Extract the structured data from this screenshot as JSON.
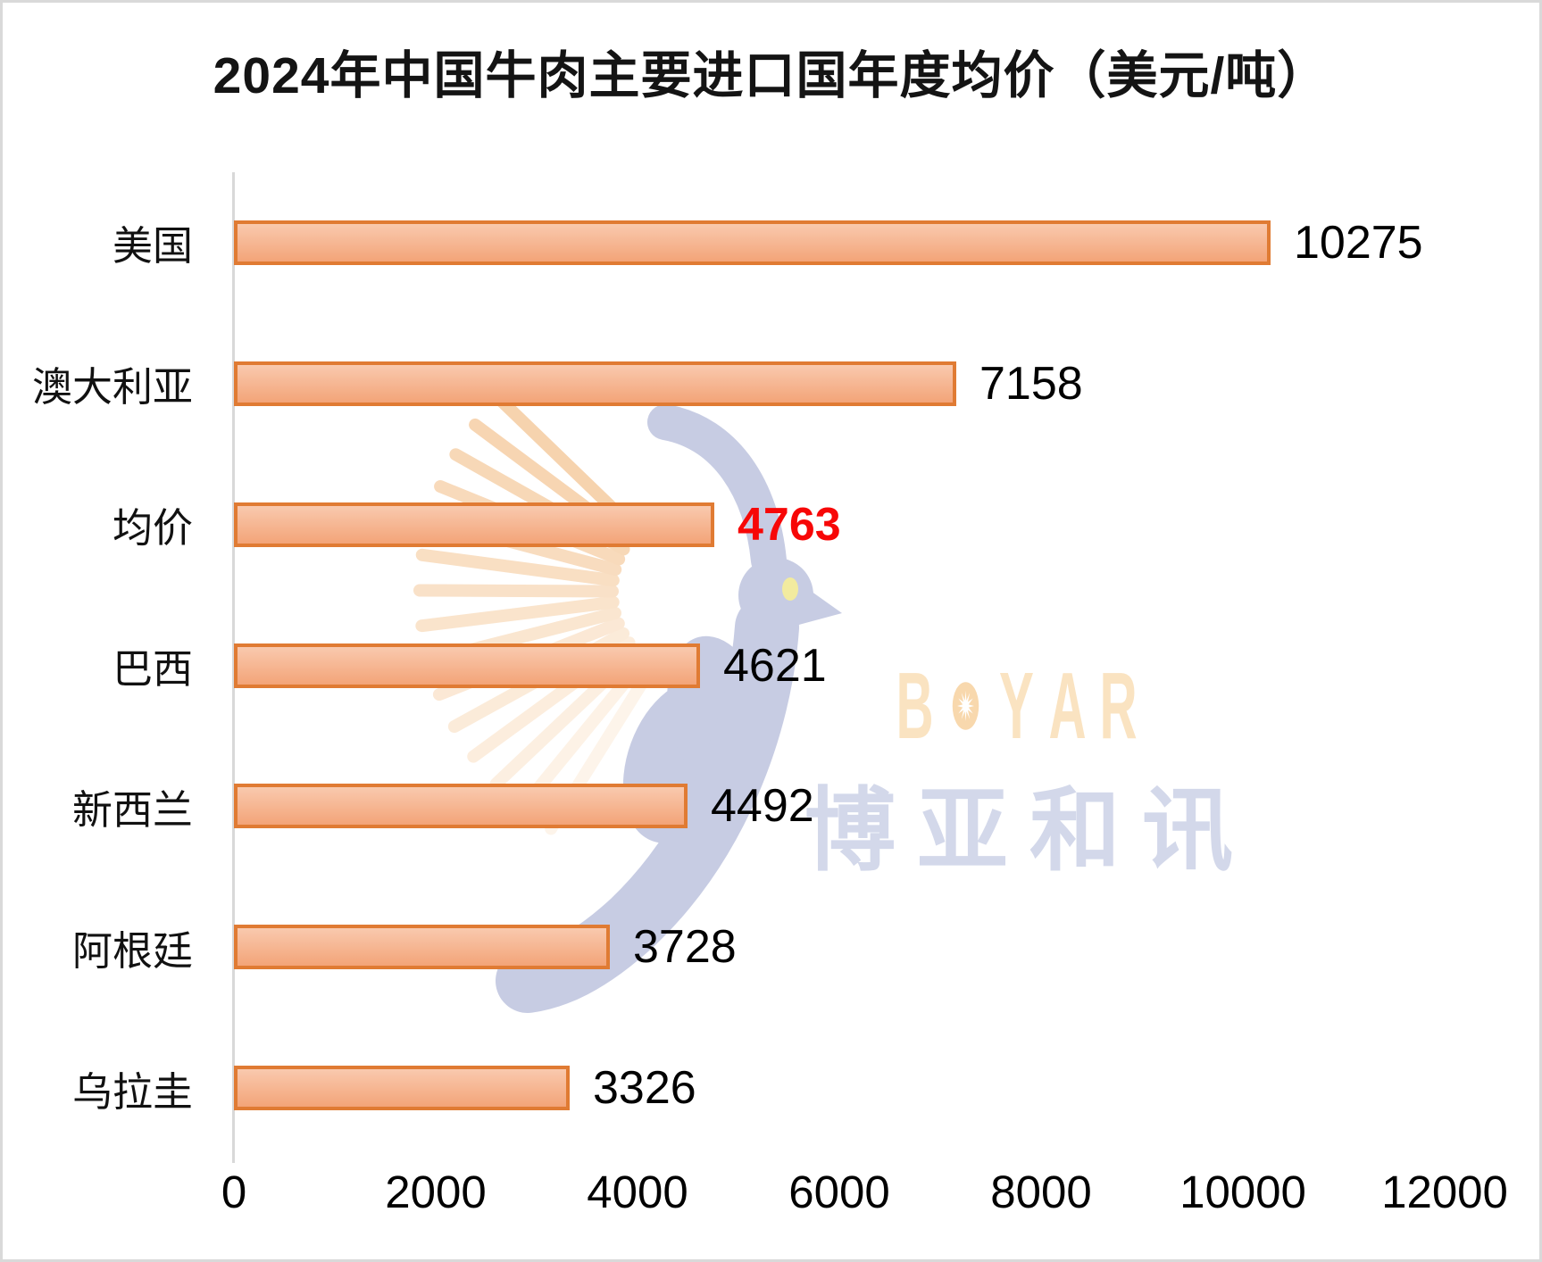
{
  "title": "2024年中国牛肉主要进口国年度均价（美元/吨）",
  "watermark": {
    "brand": "BOYAR",
    "brand_cn": "博亚和讯",
    "brand_color": "#fae3c1",
    "brand_cn_color": "#d3d8ea",
    "dove_color": "#c7cce3",
    "eye_color": "#f2eb9f",
    "wing_stripe_light": "#fdf4ea",
    "wing_stripe_dark": "#f6d3ae"
  },
  "chart_data": {
    "type": "bar",
    "orientation": "horizontal",
    "title": "2024年中国牛肉主要进口国年度均价（美元/吨）",
    "categories": [
      "美国",
      "澳大利亚",
      "均价",
      "巴西",
      "新西兰",
      "阿根廷",
      "乌拉圭"
    ],
    "values": [
      10275,
      7158,
      4763,
      4621,
      4492,
      3728,
      3326
    ],
    "highlight_category": "均价",
    "highlight_value": 4763,
    "x_ticks": [
      "0",
      "2000",
      "4000",
      "6000",
      "8000",
      "10000",
      "12000"
    ],
    "xlim": [
      0,
      12000
    ],
    "grid": false,
    "legend": false,
    "colors": {
      "bar_border": "#e07b33",
      "bar_fill_top": "#f9c9ae",
      "bar_fill_bottom": "#f3a478",
      "value_label": "#000000",
      "highlight_label": "#f70707",
      "axis_line": "#d8d8d8"
    }
  }
}
